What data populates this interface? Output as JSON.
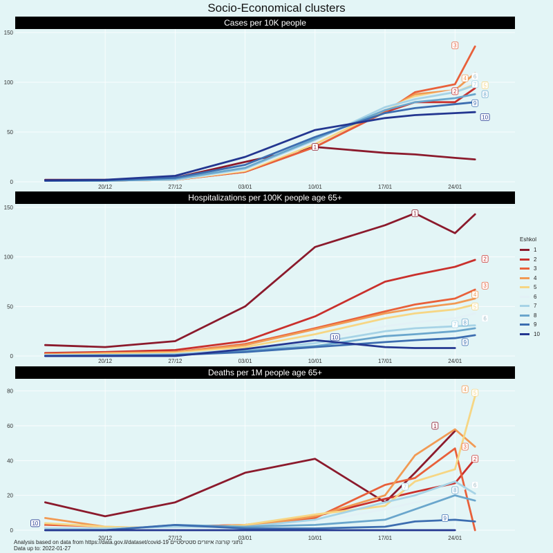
{
  "chart_title": "Socio-Economical clusters",
  "legend_title": "Eshkol",
  "footer": {
    "line1": "Analysis based on data from https://data.gov.il/dataset/covid-19 נתוני קורונה איזורים סטטיסטיים",
    "line2": "Data up to: 2022-01-27"
  },
  "chart_data": [
    {
      "type": "line",
      "title": "Cases per 10K people",
      "x_ticks": [
        "20/12",
        "27/12",
        "03/01",
        "10/01",
        "17/01",
        "24/01"
      ],
      "x_range": [
        "2021-12-14",
        "2022-01-27"
      ],
      "ylim": [
        0,
        150
      ],
      "y_ticks": [
        0,
        50,
        100,
        150
      ],
      "x_dates": [
        "2021-12-14",
        "2021-12-20",
        "2021-12-27",
        "2022-01-03",
        "2022-01-10",
        "2022-01-17",
        "2022-01-20",
        "2022-01-24",
        "2022-01-26"
      ],
      "series": [
        {
          "name": "1",
          "values": [
            2,
            2,
            4,
            20,
            35,
            29,
            27.5,
            24,
            22.5
          ]
        },
        {
          "name": "2",
          "values": [
            1,
            1,
            2,
            10,
            35,
            70,
            80,
            80,
            94
          ]
        },
        {
          "name": "3",
          "values": [
            1,
            1,
            2,
            10,
            35,
            70,
            90,
            98,
            136
          ]
        },
        {
          "name": "4",
          "values": [
            1,
            1,
            2,
            11,
            38,
            72,
            88,
            92,
            109
          ]
        },
        {
          "name": "5",
          "values": [
            1,
            1,
            2,
            11,
            38,
            72,
            86,
            91,
            98
          ]
        },
        {
          "name": "6",
          "values": [
            1,
            1,
            2,
            12,
            40,
            74,
            84,
            92,
            100
          ]
        },
        {
          "name": "7",
          "values": [
            1,
            1,
            2,
            13,
            42,
            75,
            83,
            90,
            97
          ]
        },
        {
          "name": "8",
          "values": [
            1,
            1,
            3,
            14,
            43,
            72,
            80,
            84,
            88
          ]
        },
        {
          "name": "9",
          "values": [
            1,
            1.5,
            4,
            17,
            45,
            69,
            74,
            78,
            80
          ]
        },
        {
          "name": "10",
          "values": [
            1.5,
            2,
            6,
            25,
            52,
            64,
            67,
            69,
            70
          ]
        }
      ]
    },
    {
      "type": "line",
      "title": "Hospitalizations per 100K people age 65+",
      "x_ticks": [
        "20/12",
        "27/12",
        "03/01",
        "10/01",
        "17/01",
        "24/01"
      ],
      "x_range": [
        "2021-12-14",
        "2022-01-27"
      ],
      "ylim": [
        0,
        150
      ],
      "y_ticks": [
        0,
        50,
        100,
        150
      ],
      "x_dates": [
        "2021-12-14",
        "2021-12-20",
        "2021-12-27",
        "2022-01-03",
        "2022-01-10",
        "2022-01-17",
        "2022-01-20",
        "2022-01-24",
        "2022-01-26"
      ],
      "series": [
        {
          "name": "1",
          "values": [
            11,
            9,
            15,
            50,
            110,
            132,
            144,
            124,
            143
          ]
        },
        {
          "name": "2",
          "values": [
            3,
            4,
            6,
            15,
            40,
            75,
            82,
            90,
            97
          ]
        },
        {
          "name": "3",
          "values": [
            2,
            3,
            4,
            12,
            28,
            45,
            52,
            58,
            67
          ]
        },
        {
          "name": "4",
          "values": [
            2,
            3,
            4,
            11,
            27,
            43,
            48,
            53,
            58
          ]
        },
        {
          "name": "5",
          "values": [
            1,
            2,
            3,
            9,
            22,
            38,
            43,
            47,
            52
          ]
        },
        {
          "name": "6",
          "values": [
            1,
            1,
            2,
            7,
            16,
            30,
            34,
            38,
            43
          ]
        },
        {
          "name": "7",
          "values": [
            1,
            1,
            2,
            6,
            13,
            25,
            28,
            30,
            31
          ]
        },
        {
          "name": "8",
          "values": [
            0,
            1,
            1,
            5,
            10,
            20,
            22,
            25,
            28
          ]
        },
        {
          "name": "9",
          "values": [
            0,
            0,
            1,
            4,
            9,
            14,
            16,
            18,
            21
          ]
        },
        {
          "name": "10",
          "values": [
            0,
            0,
            0,
            7,
            16,
            9,
            8,
            8,
            null
          ]
        }
      ]
    },
    {
      "type": "line",
      "title": "Deaths per 1M people age 65+",
      "x_ticks": [
        "20/12",
        "27/12",
        "03/01",
        "10/01",
        "17/01",
        "24/01"
      ],
      "x_range": [
        "2021-12-14",
        "2022-01-27"
      ],
      "ylim": [
        0,
        85
      ],
      "y_ticks": [
        0,
        20,
        40,
        60,
        80
      ],
      "x_dates": [
        "2021-12-14",
        "2021-12-20",
        "2021-12-27",
        "2022-01-03",
        "2022-01-10",
        "2022-01-17",
        "2022-01-20",
        "2022-01-24",
        "2022-01-26"
      ],
      "series": [
        {
          "name": "1",
          "values": [
            16,
            8,
            16,
            33,
            41,
            16,
            33,
            57,
            null
          ]
        },
        {
          "name": "2",
          "values": [
            2,
            0,
            2,
            3,
            8,
            18,
            22,
            27,
            41
          ]
        },
        {
          "name": "3",
          "values": [
            3,
            1,
            2,
            3,
            7,
            26,
            30,
            47,
            0
          ]
        },
        {
          "name": "4",
          "values": [
            7,
            2,
            1,
            2,
            8,
            20,
            43,
            58,
            48
          ]
        },
        {
          "name": "5",
          "values": [
            4,
            2,
            1,
            3,
            9,
            14,
            28,
            35,
            77
          ]
        },
        {
          "name": "6",
          "values": [
            2,
            1,
            1,
            1,
            5,
            12,
            16,
            20,
            28
          ]
        },
        {
          "name": "7",
          "values": [
            1,
            1,
            2,
            2,
            6,
            16,
            20,
            28,
            21
          ]
        },
        {
          "name": "8",
          "values": [
            0,
            0,
            3,
            2,
            3,
            6,
            12,
            20,
            17
          ]
        },
        {
          "name": "9",
          "values": [
            0,
            0,
            3,
            1,
            1,
            2,
            5,
            6,
            5
          ]
        },
        {
          "name": "10",
          "values": [
            0,
            0,
            0,
            0,
            0,
            0,
            0,
            0,
            null
          ]
        }
      ]
    }
  ],
  "series_colors": {
    "1": "#8b1a2c",
    "2": "#c9302c",
    "3": "#e8603a",
    "4": "#f19a54",
    "5": "#f6d684",
    "6": "#e3f1f6",
    "7": "#a6d3e6",
    "8": "#6aa6cc",
    "9": "#3c6db0",
    "10": "#233690"
  },
  "legend_items": [
    "1",
    "2",
    "3",
    "4",
    "5",
    "6",
    "7",
    "8",
    "9",
    "10"
  ],
  "end_labels": [
    {
      "panel": 0,
      "series": "1",
      "date": "2022-01-10",
      "value": 35
    },
    {
      "panel": 0,
      "series": "3",
      "date": "2022-01-24",
      "value": 137
    },
    {
      "panel": 0,
      "series": "4",
      "date": "2022-01-25",
      "value": 104
    },
    {
      "panel": 0,
      "series": "6",
      "date": "2022-01-26",
      "value": 106
    },
    {
      "panel": 0,
      "series": "5",
      "date": "2022-01-27",
      "value": 97
    },
    {
      "panel": 0,
      "series": "7",
      "date": "2022-01-26",
      "value": 98
    },
    {
      "panel": 0,
      "series": "2",
      "date": "2022-01-24",
      "value": 91
    },
    {
      "panel": 0,
      "series": "8",
      "date": "2022-01-27",
      "value": 88
    },
    {
      "panel": 0,
      "series": "9",
      "date": "2022-01-26",
      "value": 79
    },
    {
      "panel": 0,
      "series": "10",
      "date": "2022-01-27",
      "value": 65
    },
    {
      "panel": 1,
      "series": "1",
      "date": "2022-01-20",
      "value": 144
    },
    {
      "panel": 1,
      "series": "2",
      "date": "2022-01-27",
      "value": 98
    },
    {
      "panel": 1,
      "series": "3",
      "date": "2022-01-27",
      "value": 71
    },
    {
      "panel": 1,
      "series": "4",
      "date": "2022-01-26",
      "value": 62
    },
    {
      "panel": 1,
      "series": "5",
      "date": "2022-01-26",
      "value": 50
    },
    {
      "panel": 1,
      "series": "6",
      "date": "2022-01-27",
      "value": 38
    },
    {
      "panel": 1,
      "series": "7",
      "date": "2022-01-24",
      "value": 32
    },
    {
      "panel": 1,
      "series": "8",
      "date": "2022-01-25",
      "value": 34
    },
    {
      "panel": 1,
      "series": "9",
      "date": "2022-01-25",
      "value": 14
    },
    {
      "panel": 1,
      "series": "10",
      "date": "2022-01-12",
      "value": 19
    },
    {
      "panel": 2,
      "series": "10",
      "date": "2021-12-13",
      "value": 4
    },
    {
      "panel": 2,
      "series": "1",
      "date": "2022-01-22",
      "value": 60
    },
    {
      "panel": 2,
      "series": "3",
      "date": "2022-01-25",
      "value": 48
    },
    {
      "panel": 2,
      "series": "4",
      "date": "2022-01-25",
      "value": 81
    },
    {
      "panel": 2,
      "series": "5",
      "date": "2022-01-26",
      "value": 79
    },
    {
      "panel": 2,
      "series": "2",
      "date": "2022-01-26",
      "value": 41
    },
    {
      "panel": 2,
      "series": "7",
      "date": "2022-01-19",
      "value": 25
    },
    {
      "panel": 2,
      "series": "8",
      "date": "2022-01-24",
      "value": 23
    },
    {
      "panel": 2,
      "series": "6",
      "date": "2022-01-26",
      "value": 26
    },
    {
      "panel": 2,
      "series": "9",
      "date": "2022-01-23",
      "value": 7
    }
  ]
}
